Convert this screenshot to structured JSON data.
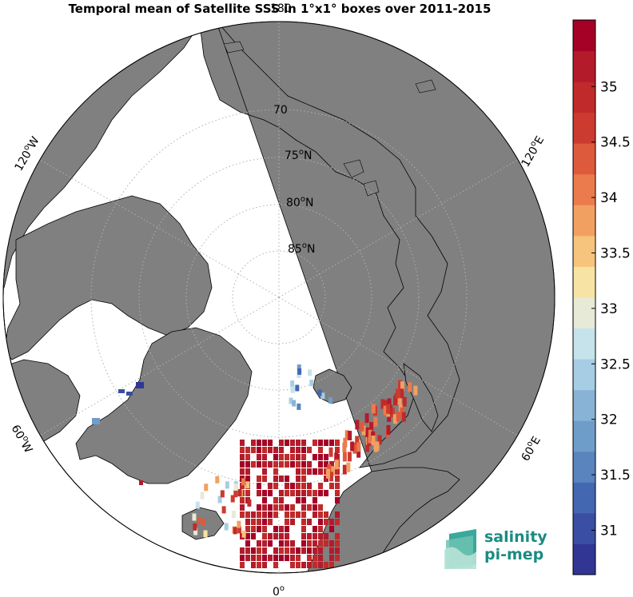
{
  "title": "Temporal mean of Satellite SSS in 1°x1° boxes over 2011-2015",
  "map": {
    "projection": "north-polar-stereographic",
    "center": "North Pole",
    "ocean_color": "#ffffff",
    "land_color": "#808080",
    "latitude_labels": [
      {
        "deg": "70",
        "unit": "N"
      },
      {
        "deg": "75",
        "unit": "N"
      },
      {
        "deg": "80",
        "unit": "N"
      },
      {
        "deg": "85",
        "unit": "N"
      }
    ],
    "longitude_labels": {
      "bottom": {
        "deg": "0",
        "unit": ""
      },
      "top": {
        "deg": "180",
        "unit": ""
      },
      "left_upper": {
        "deg": "120",
        "unit": "W"
      },
      "left_lower": {
        "deg": "60",
        "unit": "W"
      },
      "right_upper": {
        "deg": "120",
        "unit": "E"
      },
      "right_lower": {
        "deg": "60",
        "unit": "E"
      }
    }
  },
  "colorbar": {
    "min": 30.6,
    "max": 35.6,
    "ticks": [
      "31",
      "31.5",
      "32",
      "32.5",
      "33",
      "33.5",
      "34",
      "34.5",
      "35"
    ],
    "colors": [
      "#313695",
      "#3a4ea3",
      "#4467b1",
      "#5a84be",
      "#6f9dc9",
      "#89b3d6",
      "#a6cde3",
      "#c6e3ec",
      "#e6ead6",
      "#f7e4a5",
      "#f6c47c",
      "#f2a062",
      "#eb7b4d",
      "#de5a3d",
      "#cc3b2f",
      "#c02a2a",
      "#b31b2b",
      "#a50026"
    ]
  },
  "logo": {
    "line1": "salinity",
    "line2": "pi-mep"
  }
}
